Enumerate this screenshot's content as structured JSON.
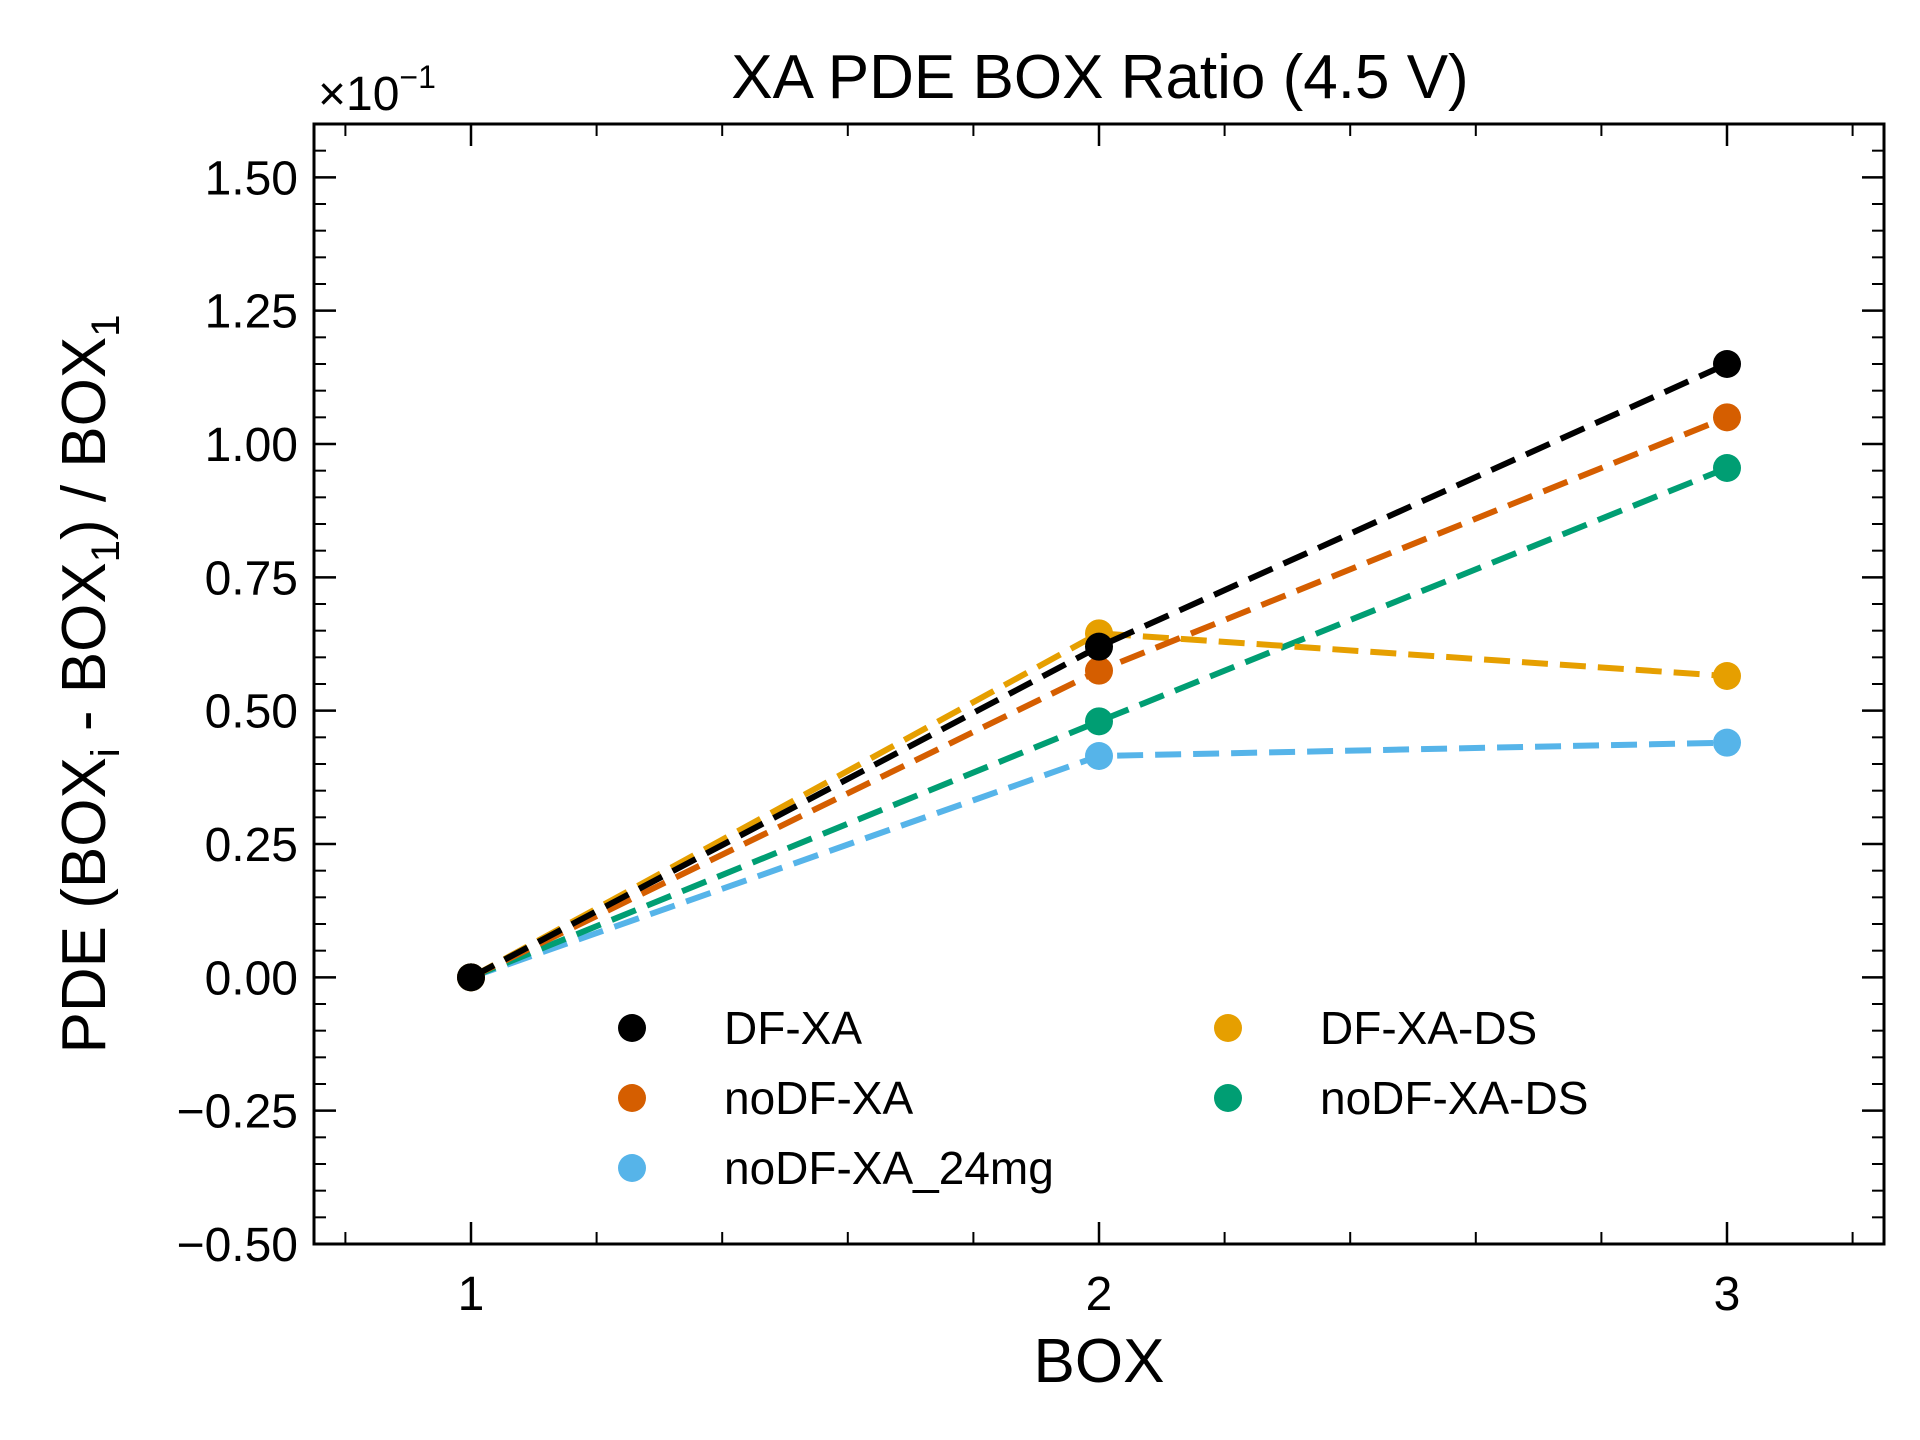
{
  "chart_data": {
    "type": "line",
    "title": "XA PDE BOX Ratio (4.5 V)",
    "xlabel": "BOX",
    "ylabel": {
      "pre": "PDE (BOX",
      "sub_i": "i",
      "mid": " - BOX",
      "sub_1a": "1",
      "post": ") / BOX",
      "sub_1b": "1"
    },
    "y_scale_label": "×10",
    "y_scale_exponent": "−1",
    "x": [
      1,
      2,
      3
    ],
    "xlim": [
      0.75,
      3.25
    ],
    "ylim": [
      -0.5,
      1.6
    ],
    "x_ticks": [
      {
        "value": 1,
        "label": "1"
      },
      {
        "value": 2,
        "label": "2"
      },
      {
        "value": 3,
        "label": "3"
      }
    ],
    "y_ticks": [
      {
        "value": -0.5,
        "label": "−0.50"
      },
      {
        "value": -0.25,
        "label": "−0.25"
      },
      {
        "value": 0.0,
        "label": "0.00"
      },
      {
        "value": 0.25,
        "label": "0.25"
      },
      {
        "value": 0.5,
        "label": "0.50"
      },
      {
        "value": 0.75,
        "label": "0.75"
      },
      {
        "value": 1.0,
        "label": "1.00"
      },
      {
        "value": 1.25,
        "label": "1.25"
      },
      {
        "value": 1.5,
        "label": "1.50"
      }
    ],
    "series": [
      {
        "name": "noDF-XA_24mg",
        "color": "#56B4E9",
        "values": [
          0.0,
          0.415,
          0.44
        ]
      },
      {
        "name": "noDF-XA-DS",
        "color": "#009E73",
        "values": [
          0.0,
          0.48,
          0.955
        ]
      },
      {
        "name": "DF-XA-DS",
        "color": "#E69F00",
        "values": [
          0.0,
          0.645,
          0.565
        ]
      },
      {
        "name": "noDF-XA",
        "color": "#D55E00",
        "values": [
          0.0,
          0.575,
          1.05
        ]
      },
      {
        "name": "DF-XA",
        "color": "#000000",
        "values": [
          0.0,
          0.62,
          1.15
        ]
      }
    ],
    "legend": {
      "placement": "lower-center",
      "columns": [
        [
          "DF-XA",
          "noDF-XA",
          "noDF-XA_24mg"
        ],
        [
          "DF-XA-DS",
          "noDF-XA-DS"
        ]
      ]
    }
  }
}
